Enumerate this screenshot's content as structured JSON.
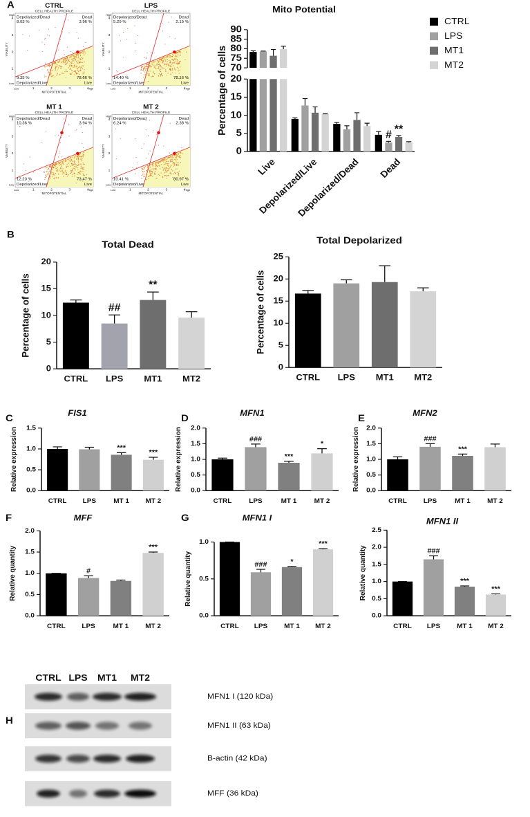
{
  "panel_labels": [
    "A",
    "B",
    "C",
    "D",
    "E",
    "F",
    "G",
    "H"
  ],
  "flow_panels": [
    {
      "title": "CTRL",
      "subtitle": "CELL HEALTH PROFILE",
      "depolarized_dead_label": "Depolarized/Dead",
      "depolarized_dead": "8.03 %",
      "dead_label": "Dead",
      "dead": "3.96 %",
      "depolarized_live": "9.35 %",
      "depolarized_live_label": "Depolarized/Live",
      "live": "78.66 %",
      "live_label": "Live",
      "x_label": "MITOPOTENTIAL",
      "y_label": "VIABILITY",
      "low_label": "Low",
      "high_label": "High",
      "ticks": [
        1,
        2,
        3,
        4
      ]
    },
    {
      "title": "LPS",
      "subtitle": "CELL HEALTH PROFILE",
      "depolarized_dead_label": "Depolarized/Dead",
      "depolarized_dead": "5.29 %",
      "dead_label": "Dead",
      "dead": "2.15 %",
      "depolarized_live": "14.40 %",
      "depolarized_live_label": "Depolarized/Live",
      "live": "78.16 %",
      "live_label": "Live",
      "x_label": "MITOPOTENTIAL",
      "y_label": "VIABILITY",
      "low_label": "Low",
      "high_label": "High",
      "ticks": [
        1,
        2,
        3,
        4
      ]
    },
    {
      "title": "MT 1",
      "subtitle": "CELL HEALTH PROFILE",
      "depolarized_dead_label": "Depolarized/Dead",
      "depolarized_dead": "10.36 %",
      "dead_label": "Dead",
      "dead": "3.94 %",
      "depolarized_live": "12.23 %",
      "depolarized_live_label": "Depolarized/Live",
      "live": "73.47 %",
      "live_label": "Live",
      "x_label": "MITOPOTENTIAL",
      "y_label": "VIABILITY",
      "low_label": "Low",
      "high_label": "High",
      "ticks": [
        1,
        2,
        3,
        4
      ]
    },
    {
      "title": "MT 2",
      "subtitle": "CELL HEALTH PROFILE",
      "depolarized_dead_label": "Depolarized/Dead",
      "depolarized_dead": "6.24 %",
      "dead_label": "Dead",
      "dead": "2.38 %",
      "depolarized_live": "10.41 %",
      "depolarized_live_label": "Depolarized/Live",
      "live": "80.97 %",
      "live_label": "Live",
      "x_label": "MITOPOTENTIAL",
      "y_label": "VIABILITY",
      "low_label": "Low",
      "high_label": "High",
      "ticks": [
        1,
        2,
        3,
        4
      ]
    }
  ],
  "chart_data": [
    {
      "type": "bar",
      "title": "Mito Potential",
      "y_label": "Percentage of cells",
      "categories": [
        "Live",
        "Depolarized/Live",
        "Depolarized/Dead",
        "Dead"
      ],
      "series": [
        {
          "name": "CTRL",
          "color": "#000000",
          "values": [
            78.3,
            9.0,
            7.6,
            4.6
          ],
          "errors": [
            0.6,
            0.3,
            0.4,
            0.9
          ]
        },
        {
          "name": "LPS",
          "color": "#a0a0a0",
          "values": [
            78.6,
            12.7,
            6.1,
            2.5
          ],
          "errors": [
            0.2,
            1.9,
            1.0,
            0.3
          ],
          "annotations": [
            null,
            null,
            null,
            "#"
          ]
        },
        {
          "name": "MT1",
          "color": "#6e6e6e",
          "values": [
            76.3,
            10.7,
            8.7,
            4.0
          ],
          "errors": [
            3.3,
            1.6,
            2.0,
            0.4
          ],
          "annotations": [
            null,
            null,
            null,
            "**"
          ]
        },
        {
          "name": "MT2",
          "color": "#d4d4d4",
          "values": [
            79.8,
            10.3,
            7.0,
            2.5
          ],
          "errors": [
            1.5,
            0.1,
            0.8,
            0.2
          ]
        }
      ],
      "ylim": [
        0,
        90
      ],
      "yticks": [
        0,
        5,
        10,
        15,
        20,
        70,
        75,
        80,
        85,
        90
      ],
      "axis_break": [
        20,
        70
      ],
      "legend": "right"
    },
    {
      "type": "bar",
      "title": "Total Dead",
      "y_label": "Percentage of cells",
      "categories": [
        "CTRL",
        "LPS",
        "MT1",
        "MT2"
      ],
      "values": [
        12.4,
        8.5,
        12.9,
        9.6
      ],
      "errors": [
        0.5,
        1.6,
        1.5,
        1.1
      ],
      "annotations": [
        null,
        "##",
        "**",
        null
      ],
      "colors": [
        "#000000",
        "#a3a3ae",
        "#6e6e6e",
        "#d4d4d4"
      ],
      "ylim": [
        0,
        20
      ],
      "yticks": [
        0,
        5,
        10,
        15,
        20
      ]
    },
    {
      "type": "bar",
      "title": "Total Depolarized",
      "y_label": "Percentage of cells",
      "categories": [
        "CTRL",
        "LPS",
        "MT1",
        "MT2"
      ],
      "values": [
        16.7,
        19.0,
        19.3,
        17.2
      ],
      "errors": [
        0.7,
        0.8,
        3.7,
        0.8
      ],
      "colors": [
        "#000000",
        "#a0a0a0",
        "#6e6e6e",
        "#d4d4d4"
      ],
      "ylim": [
        0,
        25
      ],
      "yticks": [
        0,
        5,
        10,
        15,
        20,
        25
      ]
    },
    {
      "type": "bar",
      "title": "FIS1",
      "y_label": "Relative expression",
      "categories": [
        "CTRL",
        "LPS",
        "MT 1",
        "MT 2"
      ],
      "values": [
        1.0,
        0.99,
        0.86,
        0.74
      ],
      "errors": [
        0.05,
        0.05,
        0.05,
        0.06
      ],
      "annotations": [
        null,
        null,
        "***",
        "***"
      ],
      "colors": [
        "#000000",
        "#a0a0a0",
        "#808080",
        "#d0d0d0"
      ],
      "ylim": [
        0,
        1.5
      ],
      "yticks": [
        {
          "value": 0,
          "label": "0.0"
        },
        0.5,
        {
          "value": 1,
          "label": "1.0"
        },
        1.5
      ]
    },
    {
      "type": "bar",
      "title": "MFN1",
      "y_label": "Relative expression",
      "categories": [
        "CTRL",
        "LPS",
        "MT 1",
        "MT 2"
      ],
      "values": [
        1.0,
        1.39,
        0.89,
        1.19
      ],
      "errors": [
        0.04,
        0.1,
        0.05,
        0.15
      ],
      "annotations": [
        null,
        "###",
        "***",
        "*"
      ],
      "colors": [
        "#000000",
        "#a0a0a0",
        "#808080",
        "#d0d0d0"
      ],
      "ylim": [
        0,
        2
      ],
      "yticks": [
        {
          "value": 0,
          "label": "0.0"
        },
        0.5,
        {
          "value": 1,
          "label": "1.0"
        },
        1.5,
        {
          "value": 2,
          "label": "2.0"
        }
      ]
    },
    {
      "type": "bar",
      "title": "MFN2",
      "y_label": "Relative expression",
      "categories": [
        "CTRL",
        "LPS",
        "MT 1",
        "MT 2"
      ],
      "values": [
        1.0,
        1.4,
        1.11,
        1.39
      ],
      "errors": [
        0.08,
        0.1,
        0.06,
        0.1
      ],
      "annotations": [
        null,
        "###",
        "***",
        null
      ],
      "colors": [
        "#000000",
        "#a0a0a0",
        "#808080",
        "#d0d0d0"
      ],
      "ylim": [
        0,
        2
      ],
      "yticks": [
        {
          "value": 0,
          "label": "0.0"
        },
        0.5,
        {
          "value": 1,
          "label": "1.0"
        },
        1.5,
        {
          "value": 2,
          "label": "2.0"
        }
      ]
    },
    {
      "type": "bar",
      "title": "MFF",
      "y_label": "Relative quantity",
      "categories": [
        "CTRL",
        "LPS",
        "MT 1",
        "MT 2"
      ],
      "values": [
        1.0,
        0.89,
        0.82,
        1.48
      ],
      "errors": [
        0,
        0.05,
        0.02,
        0.02
      ],
      "annotations": [
        null,
        "#",
        null,
        "***"
      ],
      "colors": [
        "#000000",
        "#a0a0a0",
        "#808080",
        "#d0d0d0"
      ],
      "ylim": [
        0,
        2
      ],
      "yticks": [
        {
          "value": 0,
          "label": "0.0"
        },
        0.5,
        {
          "value": 1,
          "label": "1.0"
        },
        1.5,
        {
          "value": 2,
          "label": "2.0"
        }
      ]
    },
    {
      "type": "bar",
      "title": "MFN1 I",
      "y_label": "Relative quantity",
      "categories": [
        "CTRL",
        "LPS",
        "MT 1",
        "MT 2"
      ],
      "values": [
        1.0,
        0.59,
        0.66,
        0.9
      ],
      "errors": [
        0,
        0.04,
        0.01,
        0.01
      ],
      "annotations": [
        null,
        "###",
        "*",
        "***"
      ],
      "colors": [
        "#000000",
        "#a0a0a0",
        "#808080",
        "#d0d0d0"
      ],
      "ylim": [
        0,
        1
      ],
      "yticks": [
        {
          "value": 0,
          "label": "0.0"
        },
        0.5,
        {
          "value": 1,
          "label": "1.0"
        }
      ]
    },
    {
      "type": "bar",
      "title": "MFN1 II",
      "y_label": "Relative quantity",
      "categories": [
        "CTRL",
        "LPS",
        "MT 1",
        "MT 2"
      ],
      "values": [
        1.0,
        1.65,
        0.85,
        0.62
      ],
      "errors": [
        0,
        0.1,
        0.02,
        0.02
      ],
      "annotations": [
        null,
        "###",
        "***",
        "***"
      ],
      "colors": [
        "#000000",
        "#a0a0a0",
        "#808080",
        "#d0d0d0"
      ],
      "ylim": [
        0,
        2.5
      ],
      "yticks": [
        {
          "value": 0,
          "label": "0.0"
        },
        0.5,
        {
          "value": 1,
          "label": "1.0"
        },
        1.5,
        {
          "value": 2,
          "label": "2.0"
        },
        2.5
      ]
    }
  ],
  "blot": {
    "lanes": [
      "CTRL",
      "LPS",
      "MT1",
      "MT2"
    ],
    "bands": [
      "MFN1 I (120 kDa)",
      "MFN1 II (63 kDa)",
      "B-actin (42 kDa)",
      "MFF (36 kDa)"
    ]
  }
}
